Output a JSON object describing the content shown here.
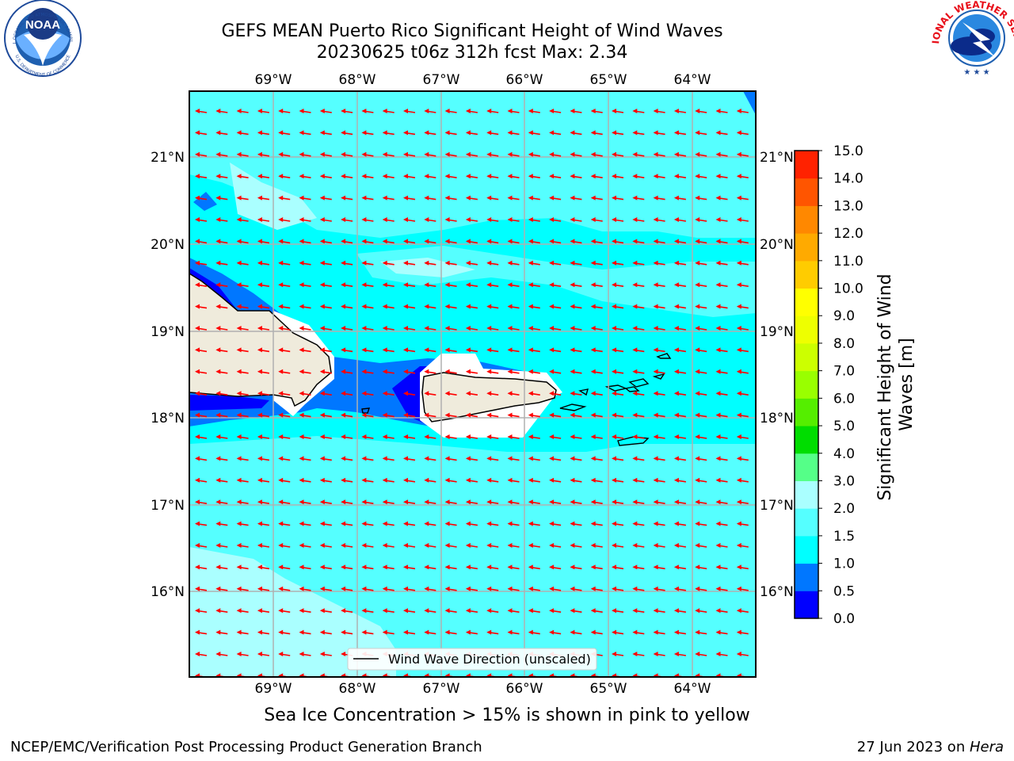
{
  "title": {
    "line1": "GEFS MEAN Puerto Rico Significant Height of Wind Waves",
    "line2": "20230625 t06z 312h fcst   Max: 2.34"
  },
  "logos": {
    "noaa_text": "NOAA",
    "noaa_ring": "NATIONAL OCEANIC AND ATMOSPHERIC ADMINISTRATION",
    "noaa_ring_bottom": "U.S. DEPARTMENT OF COMMERCE",
    "nws_ring": "NATIONAL WEATHER SERVICE"
  },
  "axes": {
    "lon_labels": [
      "69°W",
      "68°W",
      "67°W",
      "66°W",
      "65°W",
      "64°W"
    ],
    "lat_labels": [
      "21°N",
      "20°N",
      "19°N",
      "18°N",
      "17°N",
      "16°N"
    ]
  },
  "legend": {
    "label": "Wind Wave Direction (unscaled)"
  },
  "colorbar": {
    "label_line1": "Significant Height of Wind",
    "label_line2": "Waves [m]",
    "levels": [
      0.0,
      0.5,
      1.0,
      1.5,
      2.0,
      3.0,
      4.0,
      5.0,
      6.0,
      7.0,
      8.0,
      9.0,
      10.0,
      11.0,
      12.0,
      13.0,
      14.0,
      15.0
    ],
    "tick_labels": [
      "0.0",
      "0.5",
      "1.0",
      "1.5",
      "2.0",
      "3.0",
      "4.0",
      "5.0",
      "6.0",
      "7.0",
      "8.0",
      "9.0",
      "10.0",
      "11.0",
      "12.0",
      "13.0",
      "14.0",
      "15.0"
    ],
    "colors": [
      "#0000ff",
      "#0077ff",
      "#00ffff",
      "#55ffff",
      "#aaffff",
      "#55ff88",
      "#00dd00",
      "#55ee00",
      "#99ff00",
      "#ccff00",
      "#eeff00",
      "#ffff00",
      "#ffcc00",
      "#ffaa00",
      "#ff8800",
      "#ff5500",
      "#ff2200"
    ]
  },
  "colors": {
    "land": "#efebdc",
    "ocean_1_15": "#00ffff",
    "ocean_15_2": "#55ffff",
    "ocean_2_3": "#aaffff",
    "ocean_05_1": "#0077ff",
    "ocean_0_05": "#0000ff",
    "arrow": "#ff0000",
    "grid": "#b0b0b0"
  },
  "note": "Sea Ice Concentration > 15% is shown in pink to yellow",
  "footer": {
    "left": "NCEP/EMC/Verification Post Processing Product Generation Branch",
    "right_prefix": "27 Jun 2023 on ",
    "right_host": "Hera"
  }
}
